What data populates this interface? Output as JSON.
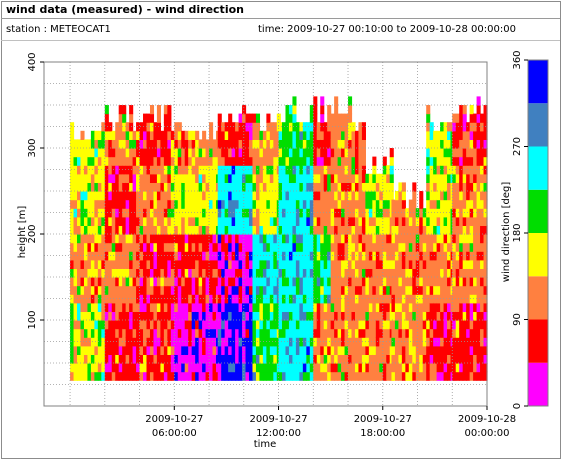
{
  "header": {
    "title": "wind data (measured) - wind direction",
    "station": "station : METEOCAT1",
    "time_range": "time: 2009-10-27 00:10:00 to 2009-10-28 00:00:00"
  },
  "chart_data": {
    "type": "heatmap",
    "title": "wind data (measured) - wind direction",
    "xlabel": "time",
    "ylabel": "height [m]",
    "colorbar_label": "wind direction [deg]",
    "x_range_hours": [
      -1.5,
      24.0
    ],
    "y_range": [
      0,
      400
    ],
    "y_ticks": [
      100,
      200,
      300,
      400
    ],
    "x_ticks": [
      {
        "hour": 6,
        "line1": "2009-10-27",
        "line2": "06:00:00"
      },
      {
        "hour": 12,
        "line1": "2009-10-27",
        "line2": "12:00:00"
      },
      {
        "hour": 18,
        "line1": "2009-10-27",
        "line2": "18:00:00"
      },
      {
        "hour": 24,
        "line1": "2009-10-28",
        "line2": "00:00:00"
      }
    ],
    "data_height_range": [
      30,
      360
    ],
    "data_time_range_hours": [
      0,
      24
    ],
    "grid": true,
    "colorbar": {
      "range": [
        0,
        360
      ],
      "ticks": [
        0,
        90,
        180,
        270,
        360
      ],
      "bands": [
        {
          "from": 0,
          "to": 45,
          "color": "#ff00ff"
        },
        {
          "from": 45,
          "to": 90,
          "color": "#ff0000"
        },
        {
          "from": 90,
          "to": 135,
          "color": "#ff8040"
        },
        {
          "from": 135,
          "to": 180,
          "color": "#ffff00"
        },
        {
          "from": 180,
          "to": 225,
          "color": "#00dd00"
        },
        {
          "from": 225,
          "to": 270,
          "color": "#00ffff"
        },
        {
          "from": 270,
          "to": 315,
          "color": "#4080c0"
        },
        {
          "from": 315,
          "to": 360,
          "color": "#0000ff"
        }
      ]
    },
    "sections": [
      {
        "t0": 0.0,
        "t1": 2.0,
        "top": 330,
        "dir": [
          157,
          112,
          157,
          157
        ]
      },
      {
        "t0": 2.0,
        "t1": 3.8,
        "top": 355,
        "dir": [
          67,
          112,
          67,
          112
        ]
      },
      {
        "t0": 3.8,
        "t1": 5.8,
        "top": 350,
        "dir": [
          67,
          67,
          112,
          67
        ]
      },
      {
        "t0": 5.8,
        "t1": 8.5,
        "top": 340,
        "dir": [
          22,
          67,
          157,
          112
        ]
      },
      {
        "t0": 8.5,
        "t1": 10.5,
        "top": 345,
        "dir": [
          337,
          22,
          247,
          67
        ]
      },
      {
        "t0": 10.5,
        "t1": 12.0,
        "top": 350,
        "dir": [
          202,
          247,
          157,
          112
        ]
      },
      {
        "t0": 12.0,
        "t1": 14.0,
        "top": 360,
        "dir": [
          247,
          247,
          247,
          202
        ]
      },
      {
        "t0": 14.0,
        "t1": 15.0,
        "top": 360,
        "dir": [
          112,
          202,
          112,
          67
        ]
      },
      {
        "t0": 15.0,
        "t1": 17.0,
        "top": 355,
        "dir": [
          112,
          112,
          112,
          112
        ]
      },
      {
        "t0": 17.0,
        "t1": 18.5,
        "top": 300,
        "dir": [
          112,
          112,
          157,
          112
        ]
      },
      {
        "t0": 18.5,
        "t1": 20.5,
        "top": 260,
        "dir": [
          112,
          112,
          112,
          112
        ]
      },
      {
        "t0": 20.5,
        "t1": 22.0,
        "top": 350,
        "dir": [
          67,
          112,
          157,
          157
        ]
      },
      {
        "t0": 22.0,
        "t1": 24.0,
        "top": 360,
        "dir": [
          67,
          112,
          112,
          67
        ]
      }
    ]
  }
}
